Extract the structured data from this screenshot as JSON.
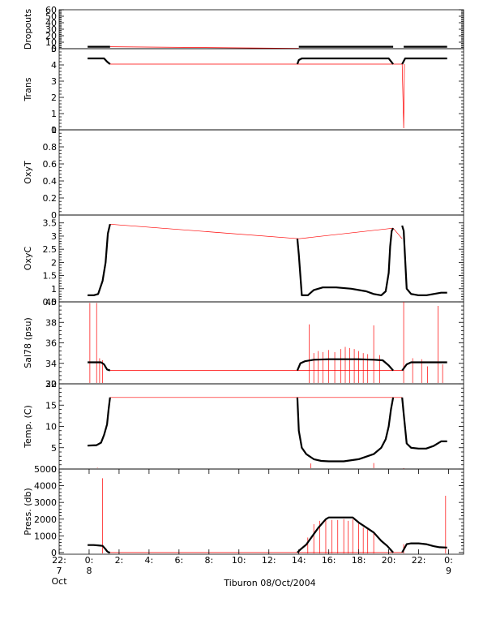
{
  "chart_data": {
    "type": "line",
    "caption": "Tiburon 08/Oct/2004",
    "x_axis": {
      "range_hours": [
        -2,
        25
      ],
      "ticks": [
        {
          "hour": -2,
          "label": "22:",
          "sub": "7"
        },
        {
          "hour": 0,
          "label": "0:",
          "sub": "8"
        },
        {
          "hour": 2,
          "label": "2:",
          "sub": ""
        },
        {
          "hour": 4,
          "label": "4:",
          "sub": ""
        },
        {
          "hour": 6,
          "label": "6:",
          "sub": ""
        },
        {
          "hour": 8,
          "label": "8:",
          "sub": ""
        },
        {
          "hour": 10,
          "label": "10:",
          "sub": ""
        },
        {
          "hour": 12,
          "label": "12:",
          "sub": ""
        },
        {
          "hour": 14,
          "label": "14:",
          "sub": ""
        },
        {
          "hour": 16,
          "label": "16:",
          "sub": ""
        },
        {
          "hour": 18,
          "label": "18:",
          "sub": ""
        },
        {
          "hour": 20,
          "label": "20:",
          "sub": ""
        },
        {
          "hour": 22,
          "label": "22:",
          "sub": ""
        },
        {
          "hour": 24,
          "label": "0:",
          "sub": "9"
        }
      ],
      "extra_label": "Oct"
    },
    "panels": [
      {
        "ylabel": "Dropouts",
        "ylim": [
          0,
          60
        ],
        "ticks": [
          0,
          10,
          20,
          30,
          40,
          50,
          60
        ],
        "segments": [
          {
            "x": [
              -0.1,
              1.4
            ],
            "y": [
              3,
              3
            ]
          },
          {
            "x": [
              14,
              20.3
            ],
            "y": [
              3,
              3
            ]
          },
          {
            "x": [
              21,
              23.9
            ],
            "y": [
              3,
              3
            ]
          }
        ],
        "red": {
          "x": [
            1.4,
            14
          ],
          "y": [
            3,
            0.5
          ]
        },
        "spikes": []
      },
      {
        "ylabel": "Trans",
        "ylim": [
          0,
          5
        ],
        "ticks": [
          0,
          1,
          2,
          3,
          4,
          5
        ],
        "segments": [
          {
            "x": [
              -0.1,
              1.0,
              1.2,
              1.4
            ],
            "y": [
              4.4,
              4.4,
              4.2,
              4.05
            ]
          },
          {
            "x": [
              13.9,
              14.0,
              14.2,
              20.0,
              20.3
            ],
            "y": [
              4.05,
              4.3,
              4.4,
              4.4,
              4.05
            ]
          },
          {
            "x": [
              20.9,
              21.1,
              23.9
            ],
            "y": [
              4.05,
              4.4,
              4.4
            ]
          }
        ],
        "red": {
          "x": [
            1.4,
            14,
            14,
            20.3,
            20.9,
            20.9,
            21.0,
            21.05
          ],
          "y": [
            4.05,
            4.05,
            4.05,
            4.05,
            4.05,
            4.05,
            0.1,
            4.05
          ]
        },
        "spikes": []
      },
      {
        "ylabel": "OxyT",
        "ylim": [
          0,
          1
        ],
        "ticks": [
          0.0,
          0.2,
          0.4,
          0.6,
          0.8,
          1.0
        ],
        "segments": [],
        "red": {
          "x": [],
          "y": []
        },
        "spikes": []
      },
      {
        "ylabel": "OxyC",
        "ylim": [
          0.5,
          3.8
        ],
        "ticks": [
          0.5,
          1.0,
          1.5,
          2.0,
          2.5,
          3.0,
          3.5
        ],
        "segments": [
          {
            "x": [
              -0.1,
              0.3,
              0.6,
              0.9,
              1.1,
              1.25,
              1.4
            ],
            "y": [
              0.75,
              0.75,
              0.8,
              1.3,
              2.0,
              3.1,
              3.45
            ]
          },
          {
            "x": [
              13.9,
              14.0,
              14.2,
              14.6,
              15.0,
              15.6,
              16.5,
              17.5,
              18.5,
              19.0,
              19.5,
              19.8,
              20.0,
              20.1,
              20.2,
              20.3
            ],
            "y": [
              2.9,
              2.3,
              0.75,
              0.75,
              0.95,
              1.05,
              1.05,
              1.0,
              0.9,
              0.8,
              0.75,
              0.9,
              1.6,
              2.6,
              3.2,
              3.3
            ]
          },
          {
            "x": [
              20.9,
              21.0,
              21.2,
              21.5,
              22.0,
              22.5,
              23.0,
              23.5,
              23.9
            ],
            "y": [
              3.4,
              3.2,
              1.0,
              0.8,
              0.75,
              0.75,
              0.8,
              0.85,
              0.85
            ]
          }
        ],
        "red": {
          "x": [
            1.4,
            14.0,
            14.0,
            20.3,
            20.9
          ],
          "y": [
            3.45,
            2.9,
            2.9,
            3.3,
            2.9
          ]
        },
        "spikes": []
      },
      {
        "ylabel": "Sal78 (psu)",
        "ylim": [
          32,
          40
        ],
        "ticks": [
          32,
          34,
          36,
          38,
          40
        ],
        "segments": [
          {
            "x": [
              -0.1,
              0.8,
              1.0,
              1.2,
              1.4
            ],
            "y": [
              34.1,
              34.1,
              33.9,
              33.4,
              33.3
            ]
          },
          {
            "x": [
              13.9,
              14.1,
              14.4,
              15.0,
              16.0,
              17.0,
              18.0,
              19.0,
              19.6,
              20.0,
              20.3
            ],
            "y": [
              33.3,
              34.0,
              34.2,
              34.35,
              34.4,
              34.4,
              34.4,
              34.35,
              34.3,
              33.8,
              33.3
            ]
          },
          {
            "x": [
              20.9,
              21.2,
              21.5,
              22.0,
              22.5,
              23.0,
              23.5,
              23.9
            ],
            "y": [
              33.3,
              33.9,
              34.1,
              34.1,
              34.1,
              34.1,
              34.1,
              34.1
            ]
          }
        ],
        "red": {
          "x": [
            1.4,
            14.0,
            20.3,
            20.9
          ],
          "y": [
            33.3,
            33.3,
            33.3,
            33.3
          ]
        },
        "spikes": [
          {
            "x": 0.05,
            "y": 39.9
          },
          {
            "x": 0.5,
            "y": 39.9
          },
          {
            "x": 0.7,
            "y": 34.5
          },
          {
            "x": 0.9,
            "y": 34.3
          },
          {
            "x": 14.7,
            "y": 37.8
          },
          {
            "x": 15.0,
            "y": 35.0
          },
          {
            "x": 15.3,
            "y": 35.2
          },
          {
            "x": 15.6,
            "y": 35.1
          },
          {
            "x": 16.0,
            "y": 35.3
          },
          {
            "x": 16.4,
            "y": 35.1
          },
          {
            "x": 16.8,
            "y": 35.4
          },
          {
            "x": 17.1,
            "y": 35.6
          },
          {
            "x": 17.4,
            "y": 35.5
          },
          {
            "x": 17.7,
            "y": 35.4
          },
          {
            "x": 18.0,
            "y": 35.2
          },
          {
            "x": 18.3,
            "y": 35.0
          },
          {
            "x": 18.6,
            "y": 34.9
          },
          {
            "x": 19.0,
            "y": 37.7
          },
          {
            "x": 19.4,
            "y": 34.8
          },
          {
            "x": 21.0,
            "y": 40.0
          },
          {
            "x": 21.6,
            "y": 34.5
          },
          {
            "x": 22.2,
            "y": 34.4
          },
          {
            "x": 22.6,
            "y": 33.7
          },
          {
            "x": 23.3,
            "y": 39.6
          },
          {
            "x": 23.6,
            "y": 33.9
          }
        ]
      },
      {
        "ylabel": "Temp. (C)",
        "ylim": [
          0,
          20
        ],
        "ticks": [
          0,
          5,
          10,
          15,
          20
        ],
        "segments": [
          {
            "x": [
              -0.1,
              0.5,
              0.8,
              1.0,
              1.2,
              1.3,
              1.4
            ],
            "y": [
              5.5,
              5.6,
              6.2,
              8.0,
              10.5,
              14.0,
              16.8
            ]
          },
          {
            "x": [
              13.9,
              14.0,
              14.2,
              14.5,
              15.0,
              15.5,
              16.0,
              17.0,
              18.0,
              19.0,
              19.5,
              19.8,
              20.0,
              20.15,
              20.3
            ],
            "y": [
              16.8,
              9.0,
              5.0,
              3.5,
              2.3,
              1.9,
              1.8,
              1.8,
              2.3,
              3.5,
              5.0,
              7.0,
              10.0,
              14.0,
              16.8
            ]
          },
          {
            "x": [
              20.9,
              21.0,
              21.2,
              21.5,
              22.0,
              22.5,
              23.0,
              23.5,
              23.9
            ],
            "y": [
              16.8,
              13.0,
              6.0,
              5.0,
              4.8,
              4.8,
              5.4,
              6.5,
              6.5
            ]
          }
        ],
        "red": {
          "x": [
            1.4,
            14.0,
            20.3,
            20.9
          ],
          "y": [
            16.8,
            16.8,
            16.8,
            16.8
          ]
        },
        "spikes": [
          {
            "x": 0.1,
            "y": 0.2
          },
          {
            "x": 0.55,
            "y": 0.3
          },
          {
            "x": 14.8,
            "y": 1.3
          },
          {
            "x": 19.0,
            "y": 1.4
          },
          {
            "x": 21.0,
            "y": 0.1
          },
          {
            "x": 23.1,
            "y": 0.2
          }
        ]
      },
      {
        "ylabel": "Press. (db)",
        "ylim": [
          -100,
          5000
        ],
        "ticks": [
          0,
          1000,
          2000,
          3000,
          4000,
          5000
        ],
        "segments": [
          {
            "x": [
              -0.1,
              0.3,
              0.6,
              0.9,
              1.1,
              1.2,
              1.3,
              1.4
            ],
            "y": [
              450,
              450,
              430,
              400,
              200,
              80,
              10,
              0
            ]
          },
          {
            "x": [
              13.9,
              14.1,
              14.5,
              14.9,
              15.3,
              15.8,
              16.0,
              16.5,
              17.0,
              17.6,
              18.0,
              18.5,
              19.0,
              19.5,
              19.9,
              20.3
            ],
            "y": [
              0,
              180,
              480,
              980,
              1480,
              2000,
              2100,
              2100,
              2100,
              2100,
              1800,
              1500,
              1200,
              700,
              400,
              0
            ]
          },
          {
            "x": [
              20.9,
              21.2,
              21.5,
              22.0,
              22.5,
              23.0,
              23.4,
              23.9
            ],
            "y": [
              0,
              500,
              550,
              550,
              500,
              380,
              320,
              300
            ]
          }
        ],
        "red": {
          "x": [
            1.4,
            14.0,
            20.3,
            20.9
          ],
          "y": [
            0,
            0,
            0,
            0
          ]
        },
        "spikes": [
          {
            "x": 0.9,
            "y": 4450
          },
          {
            "x": 14.6,
            "y": 900
          },
          {
            "x": 15.0,
            "y": 1700
          },
          {
            "x": 15.4,
            "y": 1900
          },
          {
            "x": 15.8,
            "y": 2000
          },
          {
            "x": 16.2,
            "y": 1950
          },
          {
            "x": 16.6,
            "y": 1950
          },
          {
            "x": 17.0,
            "y": 2000
          },
          {
            "x": 17.3,
            "y": 1900
          },
          {
            "x": 17.6,
            "y": 2000
          },
          {
            "x": 18.0,
            "y": 1800
          },
          {
            "x": 18.3,
            "y": 1500
          },
          {
            "x": 18.6,
            "y": 1400
          },
          {
            "x": 19.0,
            "y": 1200
          },
          {
            "x": 21.0,
            "y": 500
          },
          {
            "x": 23.8,
            "y": 3400
          }
        ]
      }
    ]
  }
}
